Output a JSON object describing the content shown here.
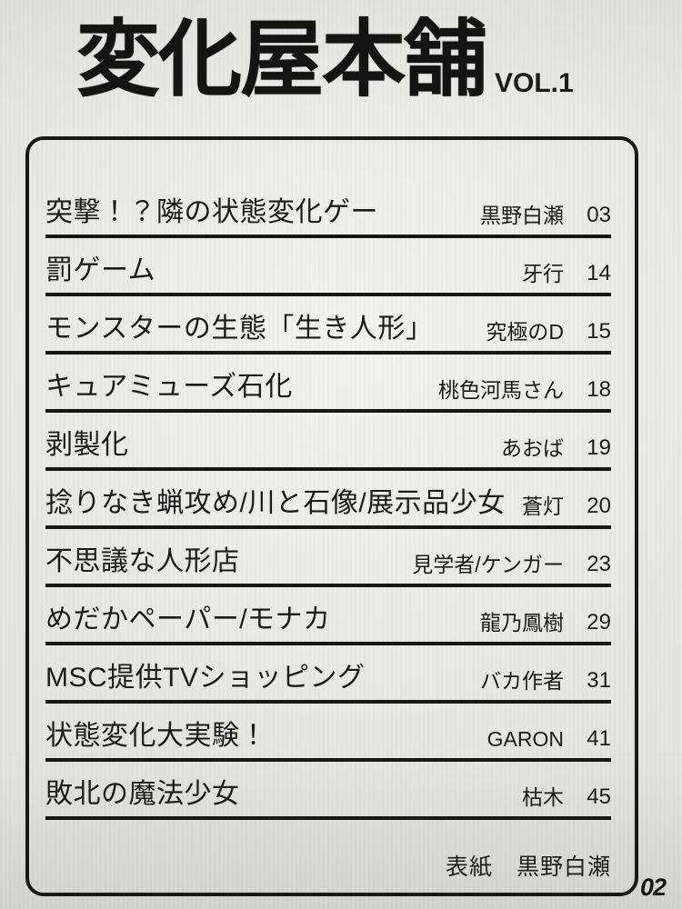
{
  "page": {
    "title": "変化屋本舗",
    "volume": "VOL.1",
    "folio": "02",
    "cover_credit_label": "表紙",
    "cover_credit_name": "黒野白瀬"
  },
  "toc": {
    "entries": [
      {
        "title": "突撃！？隣の状態変化ゲー",
        "author": "黒野白瀬",
        "page": "03"
      },
      {
        "title": "罰ゲーム",
        "author": "牙行",
        "page": "14"
      },
      {
        "title": "モンスターの生態「生き人形」",
        "author": "究極のD",
        "page": "15"
      },
      {
        "title": "キュアミューズ石化",
        "author": "桃色河馬さん",
        "page": "18"
      },
      {
        "title": "剥製化",
        "author": "あおば",
        "page": "19"
      },
      {
        "title": "捻りなき蝋攻め/川と石像/展示品少女",
        "author": "蒼灯",
        "page": "20"
      },
      {
        "title": "不思議な人形店",
        "author": "見学者/ケンガー",
        "page": "23"
      },
      {
        "title": "めだかペーパー/モナカ",
        "author": "龍乃鳳樹",
        "page": "29"
      },
      {
        "title": "MSC提供TVショッピング",
        "author": "バカ作者",
        "page": "31"
      },
      {
        "title": "状態変化大実験！",
        "author": "GARON",
        "page": "41"
      },
      {
        "title": "敗北の魔法少女",
        "author": "枯木",
        "page": "45"
      }
    ]
  },
  "colors": {
    "paper": "#e4e4e2",
    "ink": "#161616"
  }
}
